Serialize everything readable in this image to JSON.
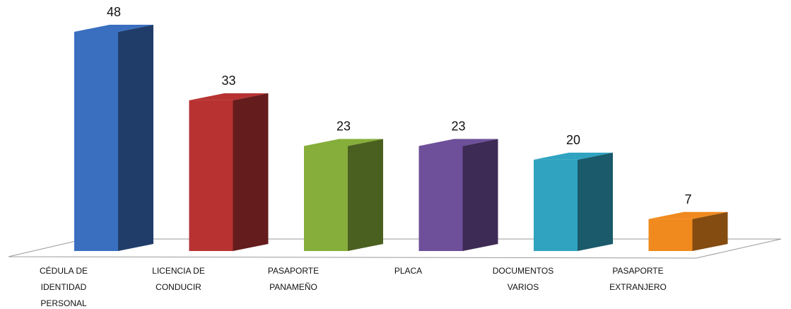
{
  "chart_data": {
    "type": "bar3d",
    "categories": [
      "CÉDULA DE\nIDENTIDAD\nPERSONAL",
      "LICENCIA DE\nCONDUCIR",
      "PASAPORTE\nPANAMEÑO",
      "PLACA",
      "DOCUMENTOS\nVARIOS",
      "PASAPORTE\nEXTRANJERO"
    ],
    "values": [
      48,
      33,
      23,
      23,
      20,
      7
    ],
    "colors": [
      "#3a6fc0",
      "#b83232",
      "#86ae3a",
      "#6e4f9a",
      "#2fa3c0",
      "#f08a1e"
    ]
  }
}
